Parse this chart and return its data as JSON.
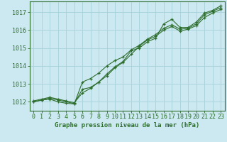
{
  "title": "Graphe pression niveau de la mer (hPa)",
  "background_color": "#cce8f0",
  "plot_bg_color": "#cce8f0",
  "grid_color": "#aad4dc",
  "line_color": "#2d6e2d",
  "x_min": -0.5,
  "x_max": 23.5,
  "y_min": 1011.5,
  "y_max": 1017.6,
  "yticks": [
    1012,
    1013,
    1014,
    1015,
    1016,
    1017
  ],
  "xticks": [
    0,
    1,
    2,
    3,
    4,
    5,
    6,
    7,
    8,
    9,
    10,
    11,
    12,
    13,
    14,
    15,
    16,
    17,
    18,
    19,
    20,
    21,
    22,
    23
  ],
  "series1_x": [
    0,
    1,
    2,
    3,
    4,
    5,
    6,
    7,
    8,
    9,
    10,
    11,
    12,
    13,
    14,
    15,
    16,
    17,
    18,
    19,
    20,
    21,
    22,
    23
  ],
  "series1_y": [
    1012.0,
    1012.1,
    1012.2,
    1012.1,
    1012.0,
    1011.9,
    1012.7,
    1012.8,
    1013.1,
    1013.55,
    1013.95,
    1014.25,
    1014.85,
    1015.0,
    1015.35,
    1015.55,
    1016.35,
    1016.6,
    1016.15,
    1016.15,
    1016.45,
    1016.95,
    1017.1,
    1017.35
  ],
  "series2_x": [
    0,
    1,
    2,
    3,
    4,
    5,
    6,
    7,
    8,
    9,
    10,
    11,
    12,
    13,
    14,
    15,
    16,
    17,
    18,
    19,
    20,
    21,
    22,
    23
  ],
  "series2_y": [
    1012.0,
    1012.1,
    1012.15,
    1012.0,
    1011.92,
    1011.88,
    1013.1,
    1013.3,
    1013.6,
    1014.0,
    1014.3,
    1014.5,
    1014.9,
    1015.15,
    1015.5,
    1015.75,
    1016.1,
    1016.3,
    1016.05,
    1016.1,
    1016.35,
    1016.85,
    1017.05,
    1017.25
  ],
  "series3_x": [
    0,
    1,
    2,
    3,
    4,
    5,
    6,
    7,
    8,
    9,
    10,
    11,
    12,
    13,
    14,
    15,
    16,
    17,
    18,
    19,
    20,
    21,
    22,
    23
  ],
  "series3_y": [
    1012.05,
    1012.15,
    1012.25,
    1012.15,
    1012.05,
    1011.95,
    1012.5,
    1012.75,
    1013.1,
    1013.45,
    1013.9,
    1014.2,
    1014.65,
    1015.1,
    1015.45,
    1015.65,
    1016.0,
    1016.2,
    1015.95,
    1016.05,
    1016.25,
    1016.7,
    1016.95,
    1017.15
  ],
  "tick_fontsize": 6.0,
  "title_fontsize": 6.5,
  "linewidth": 0.8,
  "markersize": 3.5
}
